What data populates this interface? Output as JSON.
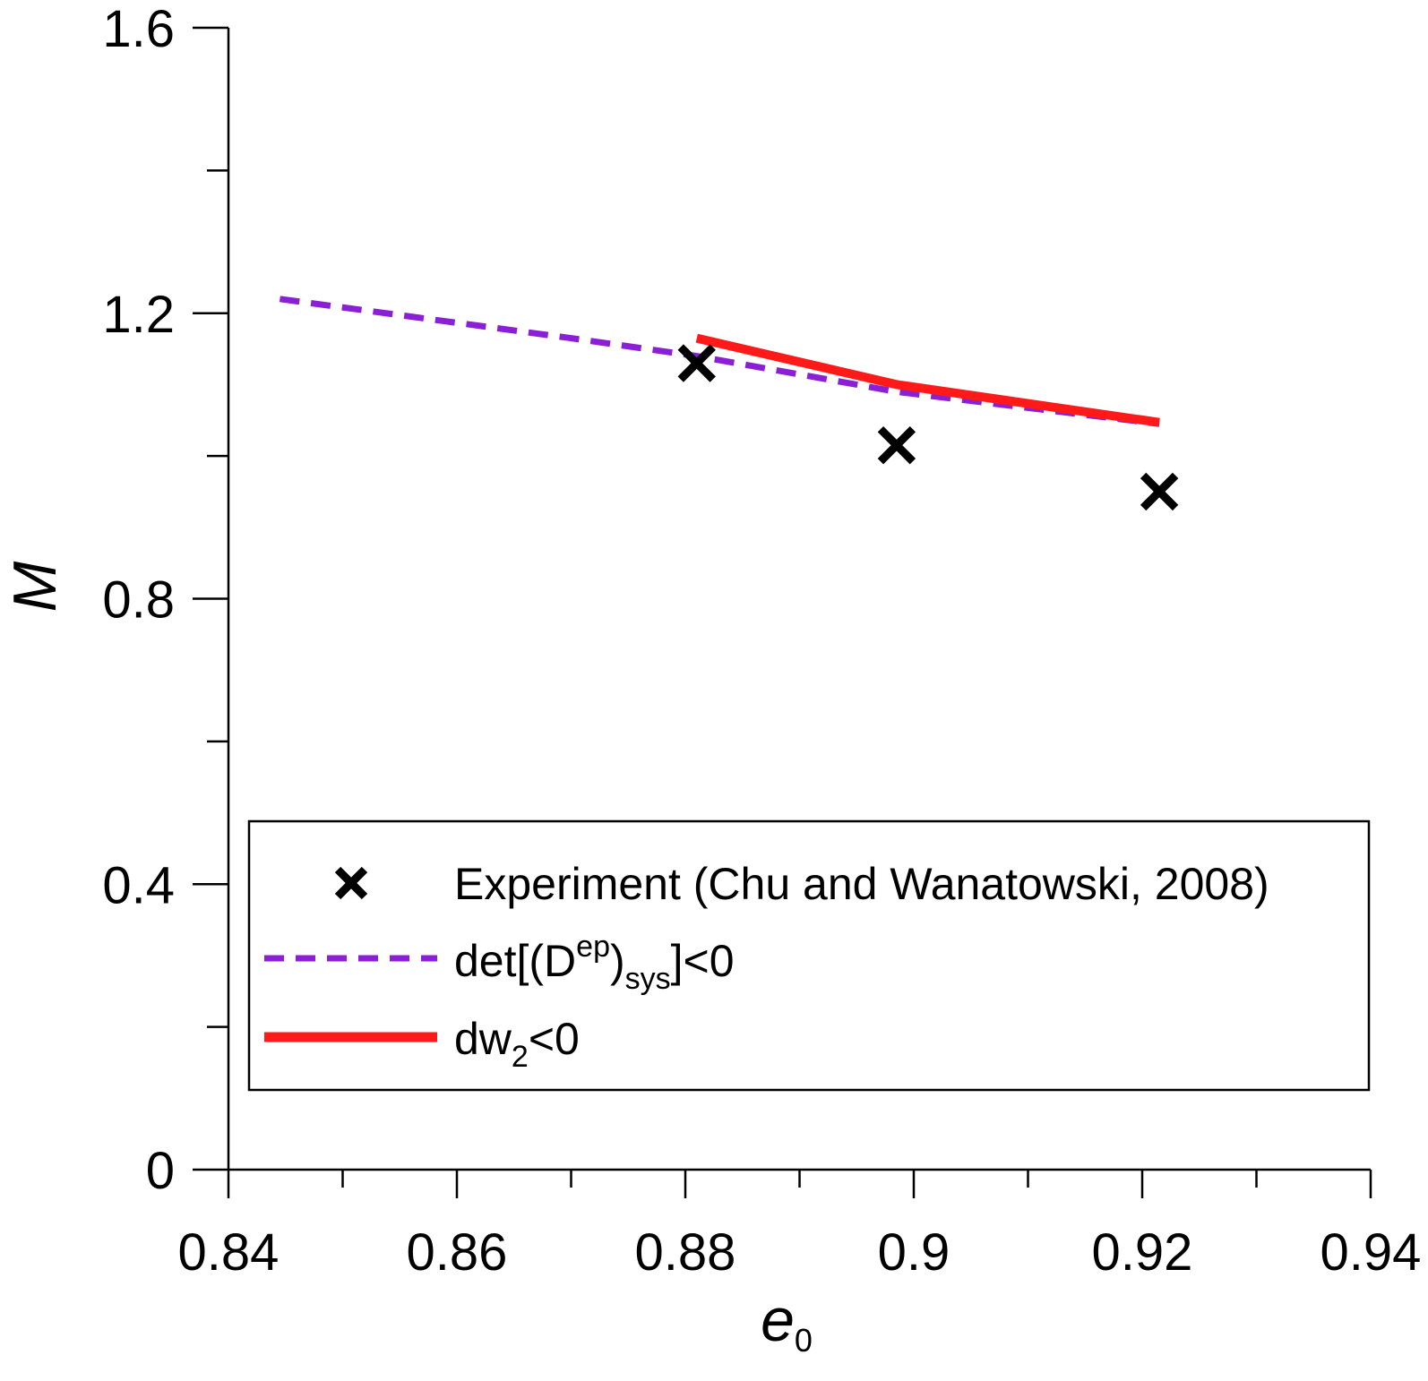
{
  "chart_data": {
    "type": "line",
    "title": "",
    "xlabel": "e",
    "xlabel_sub": "0",
    "ylabel": "M",
    "xlim": [
      0.84,
      0.94
    ],
    "ylim": [
      0,
      1.6
    ],
    "x_major_ticks": [
      0.84,
      0.86,
      0.88,
      0.9,
      0.92,
      0.94
    ],
    "x_tick_labels": [
      "0.84",
      "0.86",
      "0.88",
      "0.9",
      "0.92",
      "0.94"
    ],
    "x_minor_ticks": [
      0.85,
      0.87,
      0.89,
      0.91,
      0.93
    ],
    "y_major_ticks": [
      0,
      0.4,
      0.8,
      1.2,
      1.6
    ],
    "y_tick_labels": [
      "0",
      "0.4",
      "0.8",
      "1.2",
      "1.6"
    ],
    "y_minor_ticks": [
      0.2,
      0.6,
      1.0,
      1.4
    ],
    "grid": false,
    "legend_position": "bottom-right",
    "series": [
      {
        "name": "Experiment (Chu and Wanatowski, 2008)",
        "kind": "scatter",
        "marker": "x",
        "color": "#000000",
        "x": [
          0.881,
          0.8985,
          0.9215
        ],
        "y": [
          1.13,
          1.015,
          0.95
        ]
      },
      {
        "name_parts": {
          "pre": "det[(D",
          "sup": "ep",
          "mid": ")",
          "sub": "sys",
          "post": "]<0"
        },
        "kind": "line",
        "style": "dashed",
        "color": "#8b1fd6",
        "x": [
          0.8445,
          0.87,
          0.881,
          0.8985,
          0.9215
        ],
        "y": [
          1.22,
          1.165,
          1.14,
          1.09,
          1.045
        ]
      },
      {
        "name_parts": {
          "pre": "dw",
          "sub": "2",
          "post": "<0"
        },
        "kind": "line",
        "style": "solid",
        "color": "#ff1a1a",
        "x": [
          0.881,
          0.8985,
          0.9215
        ],
        "y": [
          1.165,
          1.1,
          1.047
        ]
      }
    ]
  }
}
